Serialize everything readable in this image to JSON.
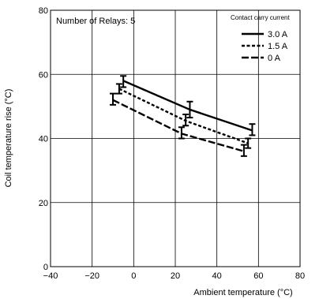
{
  "chart_data": {
    "type": "line",
    "title": "",
    "xlabel": "Ambient temperature (°C)",
    "ylabel": "Coil temperature rise (°C)",
    "xlim": [
      -40,
      80
    ],
    "ylim": [
      0,
      80
    ],
    "xticks": [
      -40,
      -20,
      0,
      20,
      40,
      60,
      80
    ],
    "yticks": [
      0,
      20,
      40,
      60,
      80
    ],
    "xtick_labels": [
      "−40",
      "−20",
      "0",
      "20",
      "40",
      "60",
      "80"
    ],
    "ytick_labels": [
      "0",
      "20",
      "40",
      "60",
      "80"
    ],
    "grid": true,
    "annotation": "Number of Relays: 5",
    "legend": {
      "title": "Contact carry current",
      "position": "top-right"
    },
    "series": [
      {
        "name": "3.0 A",
        "style": "solid",
        "x": [
          -5,
          27,
          57
        ],
        "y": [
          58,
          49,
          42.5
        ],
        "err_low": [
          56,
          46.5,
          41
        ],
        "err_high": [
          59.5,
          51.5,
          44.5
        ]
      },
      {
        "name": "1.5 A",
        "style": "dotted-dash",
        "x": [
          -7,
          25,
          55
        ],
        "y": [
          55.5,
          45.5,
          38.5
        ],
        "err_low": [
          54,
          44,
          37
        ],
        "err_high": [
          57,
          47.5,
          40
        ]
      },
      {
        "name": "0 A",
        "style": "dashed",
        "x": [
          -10,
          23,
          53
        ],
        "y": [
          52,
          41.5,
          36
        ],
        "err_low": [
          50.5,
          40,
          34.5
        ],
        "err_high": [
          54,
          43.5,
          38
        ]
      }
    ]
  }
}
